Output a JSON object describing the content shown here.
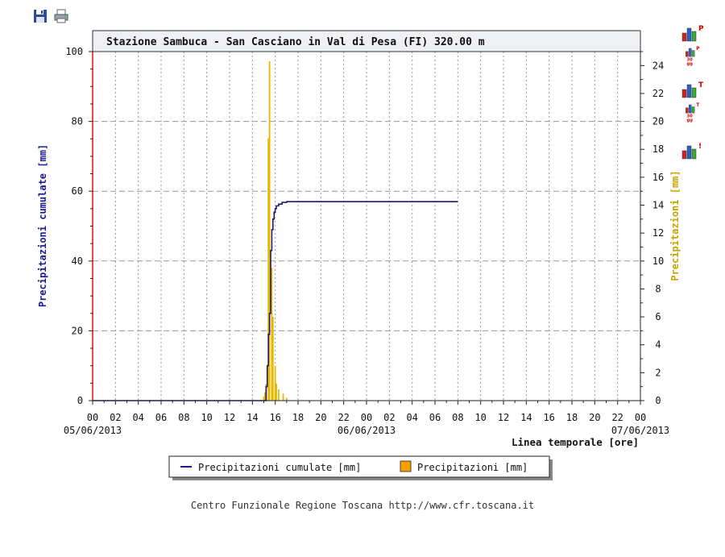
{
  "toolbar": {
    "save_icon": "floppy-disk-icon",
    "print_icon": "printer-icon"
  },
  "side_icons": [
    {
      "name": "precip-chart-icon",
      "badge": "P",
      "sub": ""
    },
    {
      "name": "precip-30-days-chart-icon",
      "badge": "P",
      "sub": "30 gg"
    },
    {
      "name": "temperature-chart-icon",
      "badge": "T",
      "sub": ""
    },
    {
      "name": "temperature-30-days-chart-icon",
      "badge": "T",
      "sub": "30 gg"
    },
    {
      "name": "info-chart-icon",
      "badge": "!",
      "sub": ""
    }
  ],
  "colors": {
    "cumulative": "#1a1a80",
    "precip_bar": "#e8b800",
    "precip_legend": "#f5a000",
    "left_axis_label": "#1a1a9a",
    "right_axis_label": "#c8a200",
    "left_axis_line": "#e00000",
    "badge": "#cc0000"
  },
  "chart_data": {
    "type": "line+bar",
    "title": "Stazione Sambuca - San Casciano in Val di Pesa (FI) 320.00 m",
    "xlabel": "Linea temporale [ore]",
    "ylabel_left": "Precipitazioni cumulate [mm]",
    "ylabel_right": "Precipitazioni [mm]",
    "x_unit": "hours since 05/06/2013 00:00",
    "xlim": [
      0,
      48
    ],
    "ylim_left": [
      0,
      100
    ],
    "ylim_right": [
      0,
      25
    ],
    "yticks_left": [
      "0",
      "20",
      "40",
      "60",
      "80",
      "100"
    ],
    "yticks_right": [
      "0",
      "2",
      "4",
      "6",
      "8",
      "10",
      "12",
      "14",
      "16",
      "18",
      "20",
      "22",
      "24"
    ],
    "xtick_labels": [
      "00",
      "02",
      "04",
      "06",
      "08",
      "10",
      "12",
      "14",
      "16",
      "18",
      "20",
      "22",
      "00",
      "02",
      "04",
      "06",
      "08",
      "10",
      "12",
      "14",
      "16",
      "18",
      "20",
      "22",
      "00"
    ],
    "date_labels": [
      "05/06/2013",
      "06/06/2013",
      "07/06/2013"
    ],
    "grid": true,
    "legend_position": "bottom-center",
    "series": [
      {
        "name": "Precipitazioni cumulate [mm]",
        "kind": "line",
        "axis": "left",
        "x": [
          0,
          15.0,
          15.2,
          15.3,
          15.4,
          15.5,
          15.6,
          15.7,
          15.8,
          15.9,
          16.0,
          16.1,
          16.3,
          16.6,
          17.0,
          19.0,
          24.0,
          32.0
        ],
        "y": [
          0,
          0,
          4,
          10,
          19,
          25,
          43,
          49,
          52,
          54,
          55,
          55.8,
          56.3,
          56.8,
          57.0,
          57.0,
          57.0,
          57.0
        ]
      },
      {
        "name": "Precipitazioni [mm]",
        "kind": "bar",
        "axis": "right",
        "x": [
          15.0,
          15.1,
          15.2,
          15.4,
          15.5,
          15.7,
          15.8,
          16.0,
          16.1,
          16.3,
          16.7,
          17.0
        ],
        "y": [
          0.3,
          0.6,
          1.2,
          18.8,
          24.3,
          9.5,
          6.0,
          2.5,
          1.2,
          0.8,
          0.5,
          0.2
        ]
      }
    ]
  },
  "footer": {
    "text": "Centro Funzionale Regione Toscana http://www.cfr.toscana.it"
  }
}
